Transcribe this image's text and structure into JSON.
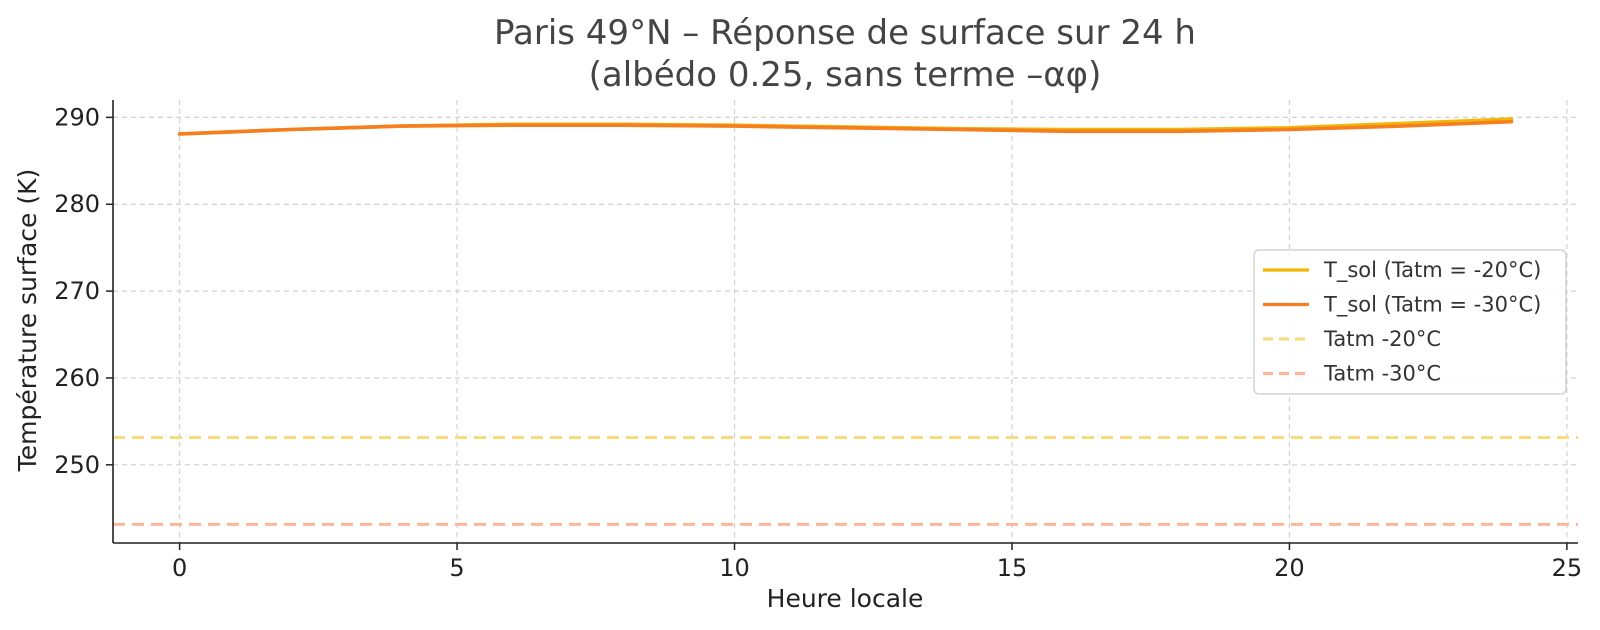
{
  "chart_data": {
    "type": "line",
    "title": "Paris 49°N – Réponse de surface sur 24 h",
    "subtitle": "(albédo 0.25, sans terme –αφ)",
    "xlabel": "Heure locale",
    "ylabel": "Température surface (K)",
    "xlim": [
      -1.2,
      25.2
    ],
    "ylim": [
      241,
      292
    ],
    "xticks": [
      0,
      5,
      10,
      15,
      20,
      25
    ],
    "yticks": [
      250,
      260,
      270,
      280,
      290
    ],
    "grid": true,
    "legend_position": "center-right",
    "series": [
      {
        "name": "T_sol (Tatm = -20°C)",
        "color": "#f2b705",
        "style": "solid",
        "x": [
          0,
          2,
          4,
          6,
          8,
          10,
          12,
          14,
          16,
          18,
          20,
          22,
          24
        ],
        "y": [
          288.1,
          288.6,
          289.0,
          289.2,
          289.2,
          289.1,
          288.9,
          288.7,
          288.6,
          288.6,
          288.8,
          289.3,
          289.8
        ]
      },
      {
        "name": "T_sol (Tatm = -30°C)",
        "color": "#f57e20",
        "style": "solid",
        "x": [
          0,
          2,
          4,
          6,
          8,
          10,
          12,
          14,
          16,
          18,
          20,
          22,
          24
        ],
        "y": [
          288.1,
          288.6,
          289.0,
          289.1,
          289.1,
          289.0,
          288.8,
          288.6,
          288.4,
          288.4,
          288.6,
          289.0,
          289.5
        ]
      },
      {
        "name": "Tatm -20°C",
        "color": "#fbd980",
        "style": "dashed",
        "hline": 253.15
      },
      {
        "name": "Tatm -30°C",
        "color": "#fbb69a",
        "style": "dashed",
        "hline": 243.15
      }
    ]
  }
}
